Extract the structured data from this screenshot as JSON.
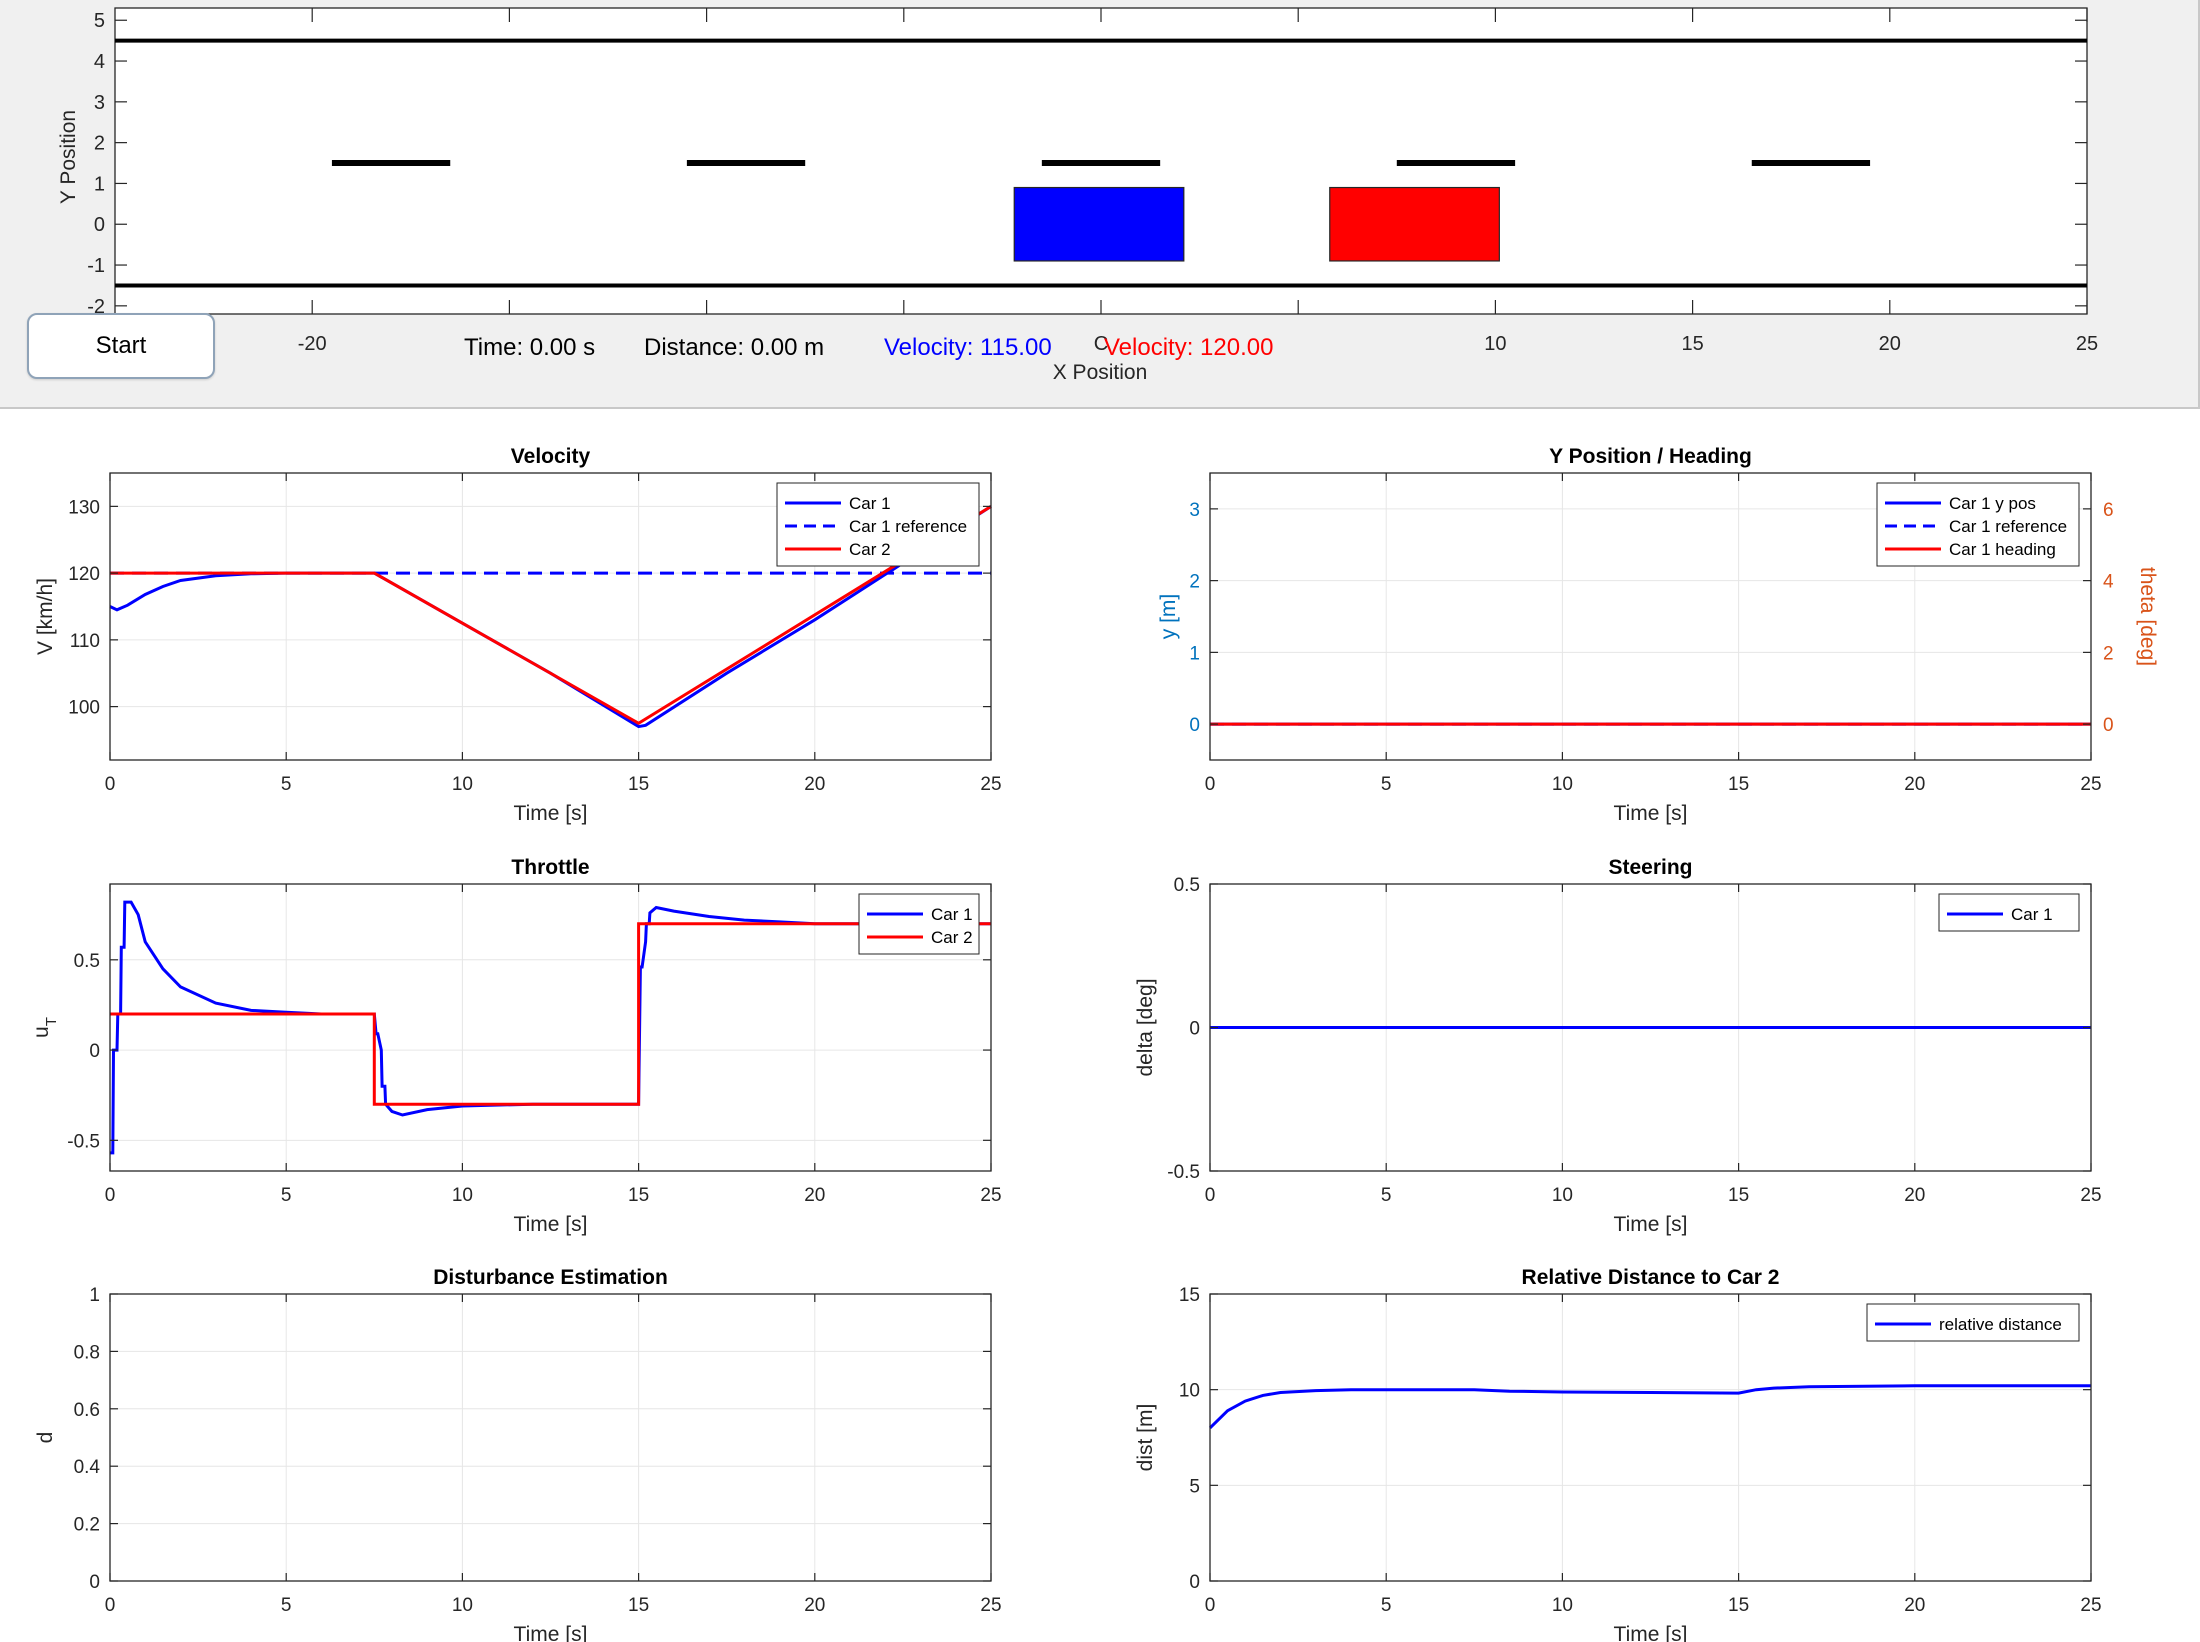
{
  "window": {
    "start_button_label": "Start",
    "time_text": "Time: 0.00 s",
    "distance_text": "Distance: 0.00 m",
    "car1_velocity_text": "Velocity: 115.00",
    "car2_velocity_text": "Velocity: 120.00",
    "colors": {
      "car1": "#0000ff",
      "car2": "#ff0000",
      "panel_bg": "#f0f0f0"
    }
  },
  "chart_data": [
    {
      "id": "road",
      "type": "scatter",
      "title": "",
      "xlabel": "X Position",
      "ylabel": "Y Position",
      "xlim": [
        -25,
        25
      ],
      "ylim": [
        -2.2,
        5.3
      ],
      "xticks": [
        -20,
        -15,
        -10,
        -5,
        0,
        5,
        10,
        15,
        20,
        25
      ],
      "xtick_labels_visible": [
        "-20",
        "C",
        "10",
        "15",
        "20",
        "25"
      ],
      "yticks": [
        -2,
        -1,
        0,
        1,
        2,
        3,
        4,
        5
      ],
      "road_edges_y": [
        4.5,
        -1.5
      ],
      "lane_markings": {
        "y": 1.5,
        "segments": [
          [
            -19.5,
            -16.5
          ],
          [
            -10.5,
            -7.5
          ],
          [
            -1.5,
            1.5
          ],
          [
            7.5,
            10.5
          ],
          [
            16.5,
            19.5
          ]
        ]
      },
      "cars": [
        {
          "name": "Car 1",
          "color": "#0000ff",
          "x": [
            -2.2,
            2.1
          ],
          "y": [
            -0.9,
            0.9
          ]
        },
        {
          "name": "Car 2",
          "color": "#ff0000",
          "x": [
            5.8,
            10.1
          ],
          "y": [
            -0.9,
            0.9
          ]
        }
      ]
    },
    {
      "id": "velocity",
      "type": "line",
      "title": "Velocity",
      "xlabel": "Time [s]",
      "ylabel": "V [km/h]",
      "xlim": [
        0,
        25
      ],
      "ylim": [
        92,
        135
      ],
      "xticks": [
        0,
        5,
        10,
        15,
        20,
        25
      ],
      "yticks": [
        100,
        110,
        120,
        130
      ],
      "grid": true,
      "legend_position": "top-right",
      "series": [
        {
          "name": "Car 1",
          "color": "#0000ff",
          "dash": "solid",
          "x": [
            0,
            0.2,
            0.5,
            1,
            1.5,
            2,
            3,
            4,
            5,
            7.5,
            10,
            12.5,
            15,
            15.2,
            17.5,
            20,
            22.5,
            25
          ],
          "y": [
            115,
            114.5,
            115.2,
            116.8,
            118,
            118.9,
            119.6,
            119.9,
            120,
            120,
            112.5,
            105,
            97,
            97.2,
            105,
            113,
            121.5,
            130
          ]
        },
        {
          "name": "Car 1 reference",
          "color": "#0000ff",
          "dash": "dashed",
          "x": [
            0,
            25
          ],
          "y": [
            120,
            120
          ]
        },
        {
          "name": "Car 2",
          "color": "#ff0000",
          "dash": "solid",
          "x": [
            0,
            7.5,
            15,
            25
          ],
          "y": [
            120,
            120,
            97.5,
            130
          ]
        }
      ]
    },
    {
      "id": "yposition",
      "type": "line",
      "title": "Y Position / Heading",
      "xlabel": "Time [s]",
      "ylabel": "y [m]",
      "ylabel_right": "theta [deg]",
      "xlim": [
        0,
        25
      ],
      "ylim": [
        -0.5,
        3.5
      ],
      "ylim_right": [
        -1,
        7
      ],
      "xticks": [
        0,
        5,
        10,
        15,
        20,
        25
      ],
      "yticks": [
        0,
        1,
        2,
        3
      ],
      "yticks_right": [
        0,
        2,
        4,
        6
      ],
      "grid": true,
      "legend_position": "top-right",
      "series": [
        {
          "name": "Car 1 y pos",
          "color": "#0000ff",
          "dash": "solid",
          "x": [
            0,
            25
          ],
          "y": [
            0,
            0
          ]
        },
        {
          "name": "Car 1 reference",
          "color": "#0000ff",
          "dash": "dashed",
          "x": [
            0,
            25
          ],
          "y": [
            0,
            0
          ]
        },
        {
          "name": "Car 1 heading",
          "color": "#ff0000",
          "dash": "solid",
          "x": [
            0,
            25
          ],
          "y": [
            0,
            0
          ]
        }
      ]
    },
    {
      "id": "throttle",
      "type": "line",
      "title": "Throttle",
      "xlabel": "Time [s]",
      "ylabel": "u",
      "ylabel_sub": "T",
      "xlim": [
        0,
        25
      ],
      "ylim": [
        -0.67,
        0.92
      ],
      "xticks": [
        0,
        5,
        10,
        15,
        20,
        25
      ],
      "yticks": [
        -0.5,
        0,
        0.5
      ],
      "grid": true,
      "legend_position": "top-right",
      "series": [
        {
          "name": "Car 1",
          "color": "#0000ff",
          "dash": "solid",
          "x": [
            0,
            0.08,
            0.1,
            0.2,
            0.22,
            0.3,
            0.32,
            0.4,
            0.42,
            0.6,
            0.8,
            1,
            1.5,
            2,
            3,
            4,
            5,
            6,
            7.5,
            7.55,
            7.6,
            7.7,
            7.72,
            7.8,
            7.82,
            8,
            8.3,
            9,
            10,
            12,
            15,
            15.05,
            15.1,
            15.2,
            15.22,
            15.3,
            15.32,
            15.5,
            16,
            17,
            18,
            19,
            20,
            25
          ],
          "y": [
            -0.57,
            -0.57,
            0.0,
            0.0,
            0.2,
            0.2,
            0.57,
            0.57,
            0.82,
            0.82,
            0.75,
            0.6,
            0.45,
            0.35,
            0.26,
            0.22,
            0.21,
            0.2,
            0.2,
            0.09,
            0.09,
            0.0,
            -0.2,
            -0.2,
            -0.3,
            -0.34,
            -0.36,
            -0.33,
            -0.31,
            -0.3,
            -0.3,
            0.46,
            0.46,
            0.6,
            0.7,
            0.7,
            0.76,
            0.79,
            0.77,
            0.74,
            0.72,
            0.71,
            0.7,
            0.7
          ]
        },
        {
          "name": "Car 2",
          "color": "#ff0000",
          "dash": "solid",
          "x": [
            0,
            7.5,
            7.5,
            15,
            15,
            25
          ],
          "y": [
            0.2,
            0.2,
            -0.3,
            -0.3,
            0.7,
            0.7
          ]
        }
      ]
    },
    {
      "id": "steering",
      "type": "line",
      "title": "Steering",
      "xlabel": "Time [s]",
      "ylabel": "delta [deg]",
      "xlim": [
        0,
        25
      ],
      "ylim": [
        -0.5,
        0.5
      ],
      "xticks": [
        0,
        5,
        10,
        15,
        20,
        25
      ],
      "yticks": [
        -0.5,
        0,
        0.5
      ],
      "grid": true,
      "legend_position": "top-right",
      "series": [
        {
          "name": "Car 1",
          "color": "#0000ff",
          "dash": "solid",
          "x": [
            0,
            25
          ],
          "y": [
            0,
            0
          ]
        }
      ]
    },
    {
      "id": "disturbance",
      "type": "line",
      "title": "Disturbance Estimation",
      "xlabel": "Time [s]",
      "ylabel": "d",
      "xlim": [
        0,
        25
      ],
      "ylim": [
        0,
        1
      ],
      "xticks": [
        0,
        5,
        10,
        15,
        20,
        25
      ],
      "yticks": [
        0,
        0.2,
        0.4,
        0.6,
        0.8,
        1
      ],
      "grid": true,
      "series": []
    },
    {
      "id": "reldist",
      "type": "line",
      "title": "Relative Distance to Car 2",
      "xlabel": "Time [s]",
      "ylabel": "dist [m]",
      "xlim": [
        0,
        25
      ],
      "ylim": [
        0,
        15
      ],
      "xticks": [
        0,
        5,
        10,
        15,
        20,
        25
      ],
      "yticks": [
        0,
        5,
        10,
        15
      ],
      "grid": true,
      "legend_position": "top-right",
      "series": [
        {
          "name": "relative distance",
          "color": "#0000ff",
          "dash": "solid",
          "x": [
            0,
            0.5,
            1,
            1.5,
            2,
            3,
            4,
            5,
            7.5,
            8.5,
            10,
            12.5,
            15,
            15.5,
            16,
            17,
            20,
            25
          ],
          "y": [
            8.0,
            8.9,
            9.4,
            9.7,
            9.85,
            9.95,
            10.0,
            10.0,
            10.0,
            9.92,
            9.88,
            9.85,
            9.82,
            10.0,
            10.08,
            10.15,
            10.2,
            10.2
          ]
        }
      ]
    }
  ]
}
